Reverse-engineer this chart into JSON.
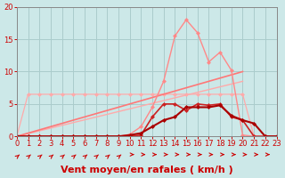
{
  "bg_color": "#cce8e8",
  "grid_color": "#aacccc",
  "xlabel": "Vent moyen/en rafales ( km/h )",
  "xlim": [
    0,
    23
  ],
  "ylim": [
    0,
    20
  ],
  "yticks": [
    0,
    5,
    10,
    15,
    20
  ],
  "xticks": [
    0,
    1,
    2,
    3,
    4,
    5,
    6,
    7,
    8,
    9,
    10,
    11,
    12,
    13,
    14,
    15,
    16,
    17,
    18,
    19,
    20,
    21,
    22,
    23
  ],
  "line_peaked_light": {
    "x": [
      0,
      1,
      2,
      3,
      4,
      5,
      6,
      7,
      8,
      9,
      10,
      11,
      12,
      13,
      14,
      15,
      16,
      17,
      18,
      19,
      20,
      21,
      22,
      23
    ],
    "y": [
      0,
      0,
      0,
      0,
      0,
      0,
      0,
      0,
      0,
      0,
      0.3,
      1.5,
      4.5,
      8.5,
      15.5,
      18,
      16,
      11.5,
      13,
      10.2,
      0.2,
      0,
      0,
      0
    ],
    "color": "#ff8888",
    "linewidth": 1.0,
    "marker": "D",
    "markersize": 2.5
  },
  "line_flat_light": {
    "x": [
      0,
      1,
      2,
      3,
      4,
      5,
      6,
      7,
      8,
      9,
      10,
      11,
      12,
      13,
      14,
      15,
      16,
      17,
      18,
      19,
      20,
      21,
      22,
      23
    ],
    "y": [
      0,
      6.5,
      6.5,
      6.5,
      6.5,
      6.5,
      6.5,
      6.5,
      6.5,
      6.5,
      6.5,
      6.5,
      6.5,
      6.5,
      6.5,
      6.5,
      6.5,
      6.5,
      6.5,
      6.5,
      6.5,
      0,
      0,
      0
    ],
    "color": "#ffaaaa",
    "linewidth": 0.9,
    "marker": "D",
    "markersize": 2.5
  },
  "line_trend1": {
    "x": [
      0,
      20
    ],
    "y": [
      0,
      10.0
    ],
    "color": "#ff7777",
    "linewidth": 1.2
  },
  "line_trend2": {
    "x": [
      0,
      20
    ],
    "y": [
      0,
      8.5
    ],
    "color": "#ffaaaa",
    "linewidth": 1.0
  },
  "line_dark_peaked": {
    "x": [
      0,
      1,
      2,
      3,
      4,
      5,
      6,
      7,
      8,
      9,
      10,
      11,
      12,
      13,
      14,
      15,
      16,
      17,
      18,
      19,
      20,
      21,
      22,
      23
    ],
    "y": [
      0,
      0,
      0,
      0,
      0,
      0,
      0,
      0,
      0,
      0,
      0,
      0.2,
      3.0,
      5.0,
      5.0,
      4.0,
      5.0,
      4.8,
      5.0,
      3.0,
      2.5,
      0,
      0,
      0
    ],
    "color": "#cc2222",
    "linewidth": 1.2,
    "marker": "D",
    "markersize": 2.5
  },
  "line_dark_stepped": {
    "x": [
      0,
      1,
      2,
      3,
      4,
      5,
      6,
      7,
      8,
      9,
      10,
      11,
      12,
      13,
      14,
      15,
      16,
      17,
      18,
      19,
      20,
      21,
      22,
      23
    ],
    "y": [
      0,
      0,
      0,
      0,
      0,
      0,
      0,
      0,
      0,
      0,
      0.2,
      0.5,
      1.5,
      2.5,
      3.0,
      4.5,
      4.5,
      4.5,
      4.8,
      3.2,
      2.5,
      2.0,
      0,
      0
    ],
    "color": "#aa0000",
    "linewidth": 1.5,
    "marker": "D",
    "markersize": 2.5
  },
  "arrow_color": "#cc0000",
  "xlabel_color": "#cc0000",
  "xlabel_fontsize": 8,
  "tick_fontsize": 6,
  "spine_color": "#888888"
}
